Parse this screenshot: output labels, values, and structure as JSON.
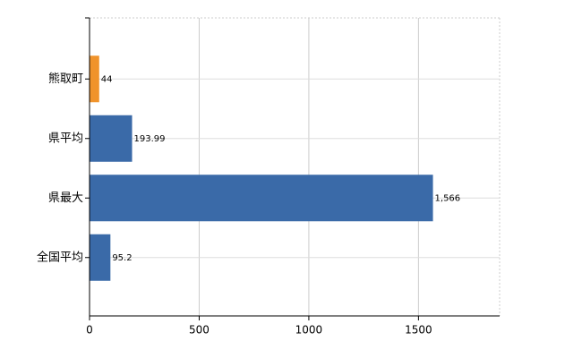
{
  "chart_data": {
    "type": "hbar",
    "categories": [
      "熊取町",
      "県平均",
      "県最大",
      "全国平均"
    ],
    "values": [
      44,
      193.99,
      1566,
      95.2
    ],
    "value_labels": [
      "44",
      "193.99",
      "1,566",
      "95.2"
    ],
    "colors": [
      "#f0932b",
      "#3a6aa8",
      "#3a6aa8",
      "#3a6aa8"
    ],
    "xlim": [
      0,
      1870
    ],
    "xticks": [
      0,
      500,
      1000,
      1500
    ],
    "grid": true
  }
}
